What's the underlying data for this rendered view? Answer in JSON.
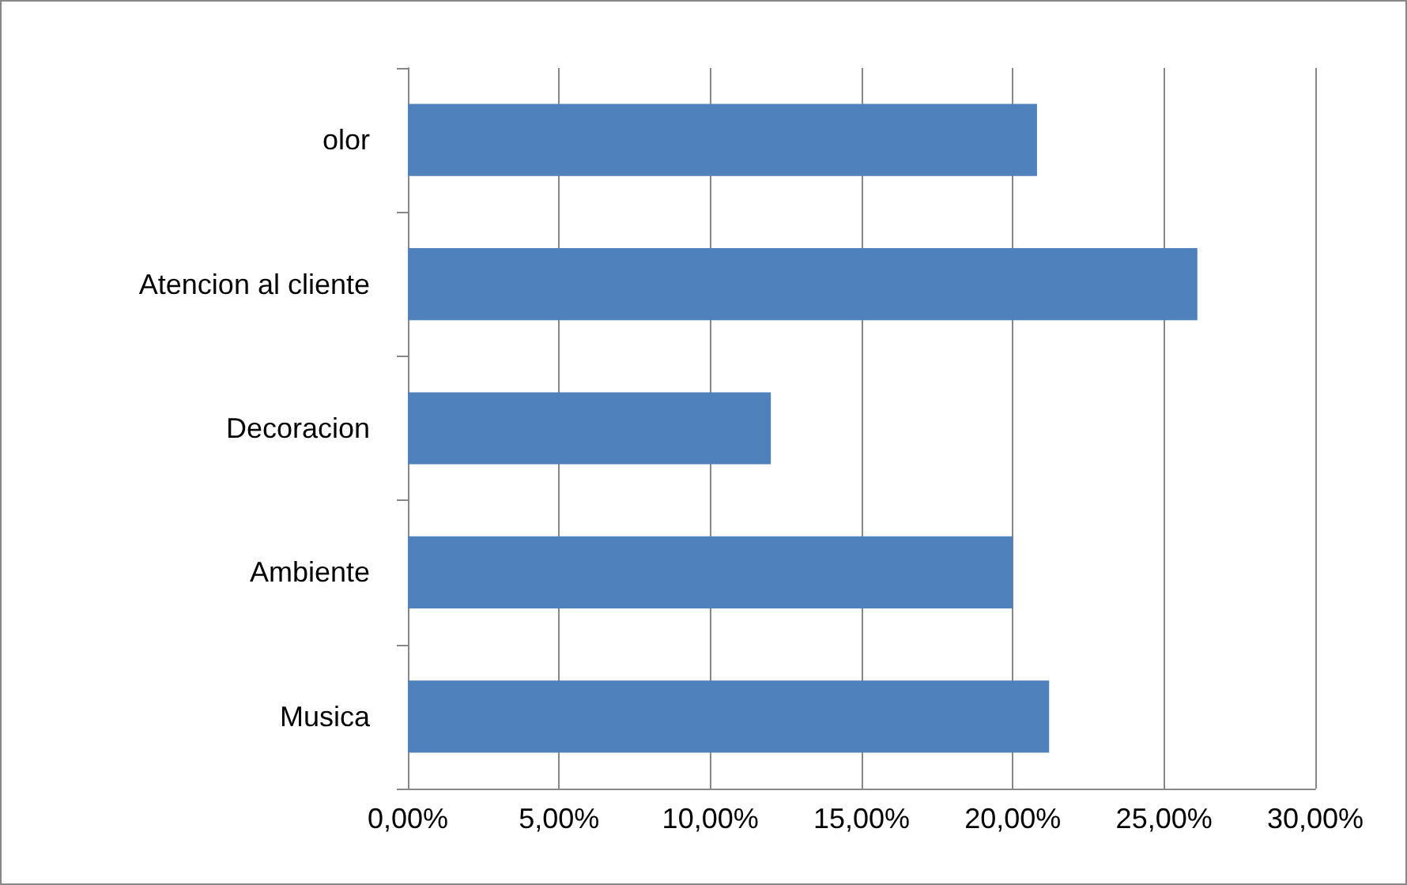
{
  "chart_data": {
    "type": "bar",
    "orientation": "horizontal",
    "categories": [
      "olor",
      "Atencion al cliente",
      "Decoracion",
      "Ambiente",
      "Musica"
    ],
    "values": [
      20.8,
      26.1,
      12.0,
      20.0,
      21.2
    ],
    "color": "#4f81bd",
    "xlim": [
      0,
      30
    ],
    "xticks": [
      {
        "value": 0,
        "label": "0,00%"
      },
      {
        "value": 5,
        "label": "5,00%"
      },
      {
        "value": 10,
        "label": "10,00%"
      },
      {
        "value": 15,
        "label": "15,00%"
      },
      {
        "value": 20,
        "label": "20,00%"
      },
      {
        "value": 25,
        "label": "25,00%"
      },
      {
        "value": 30,
        "label": "30,00%"
      }
    ],
    "grid": "x"
  }
}
